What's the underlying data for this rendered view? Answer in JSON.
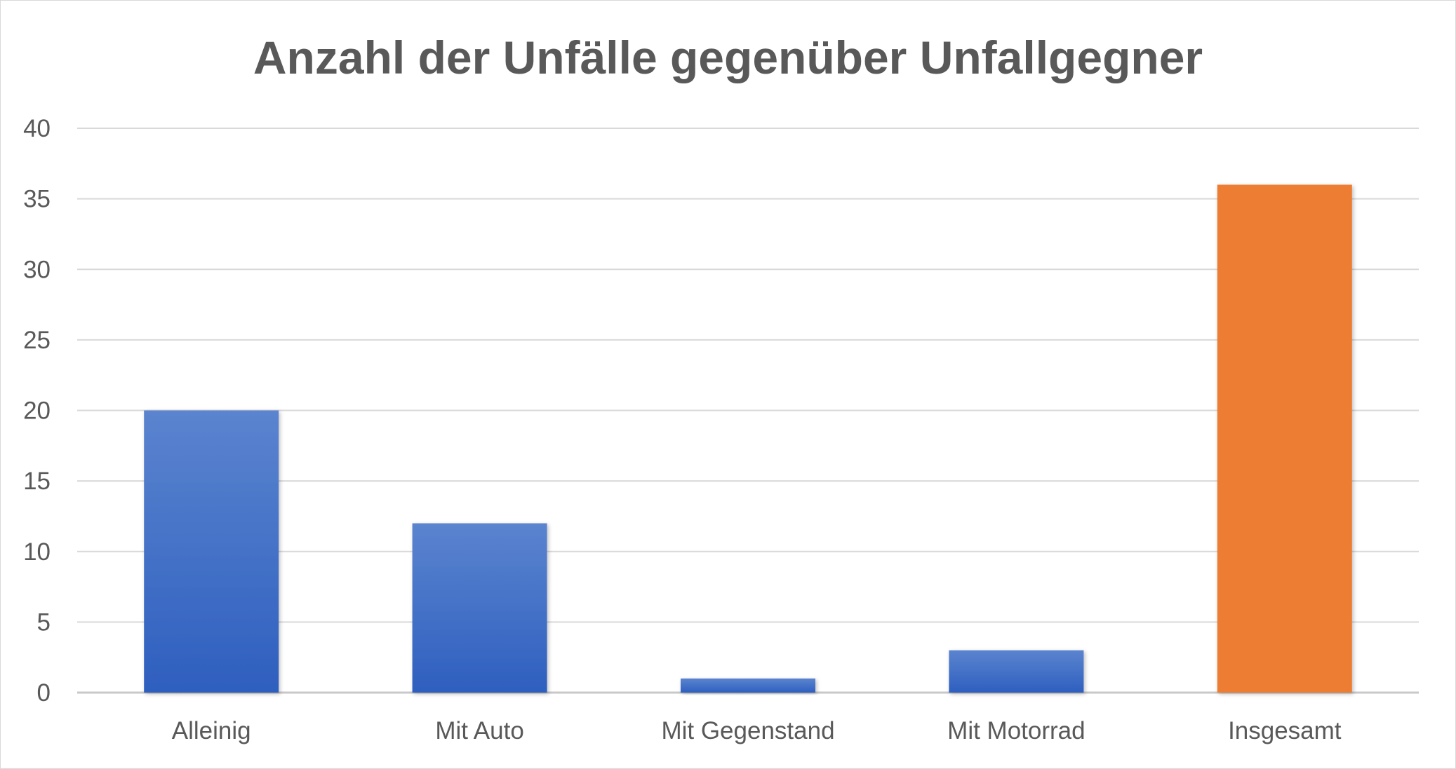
{
  "chart_data": {
    "type": "bar",
    "title": "Anzahl der Unfälle gegenüber Unfallgegner",
    "categories": [
      "Alleinig",
      "Mit Auto",
      "Mit Gegenstand",
      "Mit Motorrad",
      "Insgesamt"
    ],
    "values": [
      20,
      12,
      1,
      3,
      36
    ],
    "bar_colors": [
      "#4472c4",
      "#4472c4",
      "#4472c4",
      "#4472c4",
      "#ed7d31"
    ],
    "ylim": [
      0,
      40
    ],
    "yticks": [
      0,
      5,
      10,
      15,
      20,
      25,
      30,
      35,
      40
    ],
    "grid": true,
    "legend": "none"
  }
}
